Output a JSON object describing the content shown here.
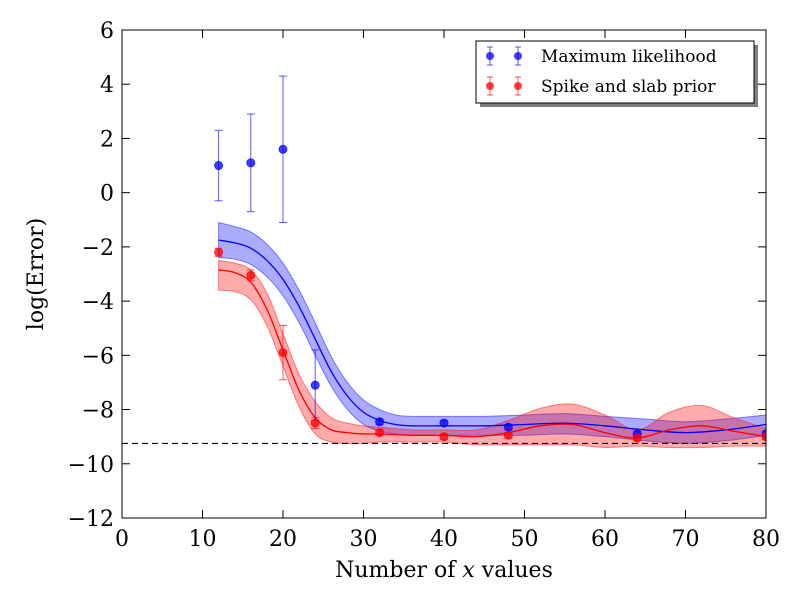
{
  "chart_data": {
    "type": "scatter",
    "xlabel": "Number of x values",
    "xlabel_parts": {
      "prefix": "Number of ",
      "var": "x",
      "suffix": " values"
    },
    "ylabel": "log(Error)",
    "xlim": [
      0,
      80
    ],
    "ylim": [
      -12,
      6
    ],
    "xticks": [
      0,
      10,
      20,
      30,
      40,
      50,
      60,
      70,
      80
    ],
    "yticks": [
      -12,
      -10,
      -8,
      -6,
      -4,
      -2,
      0,
      2,
      4,
      6
    ],
    "ytick_labels": [
      "−12",
      "−10",
      "−8",
      "−6",
      "−4",
      "−2",
      "0",
      "2",
      "4",
      "6"
    ],
    "grid": false,
    "legend_position": "top-right",
    "reference_line": {
      "y": -9.25,
      "style": "dashed",
      "color": "#000000"
    },
    "series": [
      {
        "name": "Maximum likelihood",
        "color": "#0000ff",
        "points": [
          {
            "x": 12,
            "y": 1.0,
            "err": 1.3
          },
          {
            "x": 16,
            "y": 1.1,
            "err": 1.8
          },
          {
            "x": 20,
            "y": 1.6,
            "err": 2.7
          },
          {
            "x": 24,
            "y": -7.1,
            "err": 1.3
          },
          {
            "x": 32,
            "y": -8.45,
            "err": 0.1
          },
          {
            "x": 40,
            "y": -8.5,
            "err": 0.1
          },
          {
            "x": 48,
            "y": -8.65,
            "err": 0.1
          },
          {
            "x": 64,
            "y": -8.9,
            "err": 0.1
          },
          {
            "x": 80,
            "y": -8.9,
            "err": 0.1
          }
        ],
        "fit": {
          "x": [
            12,
            14,
            16,
            18,
            20,
            22,
            24,
            26,
            28,
            30,
            32,
            34,
            36,
            40,
            45,
            50,
            55,
            60,
            65,
            70,
            75,
            80
          ],
          "mean": [
            -1.75,
            -1.85,
            -2.05,
            -2.5,
            -3.2,
            -4.2,
            -5.4,
            -6.6,
            -7.5,
            -8.1,
            -8.4,
            -8.55,
            -8.6,
            -8.6,
            -8.6,
            -8.55,
            -8.5,
            -8.6,
            -8.75,
            -8.85,
            -8.75,
            -8.55
          ],
          "lower": [
            -2.4,
            -2.45,
            -2.65,
            -3.1,
            -3.8,
            -4.8,
            -6.0,
            -7.15,
            -8.0,
            -8.55,
            -8.8,
            -8.9,
            -8.95,
            -8.95,
            -8.95,
            -8.95,
            -8.9,
            -9.0,
            -9.15,
            -9.25,
            -9.15,
            -8.95
          ],
          "upper": [
            -1.1,
            -1.25,
            -1.45,
            -1.9,
            -2.6,
            -3.6,
            -4.8,
            -6.05,
            -7.0,
            -7.65,
            -8.0,
            -8.2,
            -8.25,
            -8.25,
            -8.25,
            -8.2,
            -8.15,
            -8.25,
            -8.35,
            -8.45,
            -8.35,
            -8.2
          ]
        }
      },
      {
        "name": "Spike and slab prior",
        "color": "#ff0000",
        "points": [
          {
            "x": 12,
            "y": -2.2,
            "err": 0.15
          },
          {
            "x": 16,
            "y": -3.05,
            "err": 0.2
          },
          {
            "x": 20,
            "y": -5.9,
            "err": 1.0
          },
          {
            "x": 24,
            "y": -8.5,
            "err": 0.2
          },
          {
            "x": 32,
            "y": -8.85,
            "err": 0.1
          },
          {
            "x": 40,
            "y": -9.0,
            "err": 0.1
          },
          {
            "x": 48,
            "y": -8.95,
            "err": 0.1
          },
          {
            "x": 64,
            "y": -9.05,
            "err": 0.1
          },
          {
            "x": 80,
            "y": -9.0,
            "err": 0.1
          }
        ],
        "fit": {
          "x": [
            12,
            14,
            16,
            18,
            20,
            22,
            24,
            26,
            28,
            30,
            32,
            36,
            40,
            44,
            48,
            52,
            56,
            60,
            64,
            68,
            72,
            76,
            80
          ],
          "mean": [
            -2.85,
            -2.95,
            -3.3,
            -4.3,
            -5.8,
            -7.3,
            -8.3,
            -8.75,
            -8.85,
            -8.9,
            -8.9,
            -8.95,
            -8.95,
            -9.0,
            -8.85,
            -8.6,
            -8.55,
            -8.85,
            -9.05,
            -8.75,
            -8.6,
            -8.8,
            -9.0
          ],
          "lower": [
            -3.6,
            -3.65,
            -3.95,
            -4.9,
            -6.4,
            -7.9,
            -8.9,
            -9.2,
            -9.25,
            -9.25,
            -9.2,
            -9.2,
            -9.2,
            -9.3,
            -9.3,
            -9.3,
            -9.3,
            -9.4,
            -9.35,
            -9.4,
            -9.4,
            -9.35,
            -9.35
          ],
          "upper": [
            -2.5,
            -2.6,
            -2.85,
            -3.7,
            -5.2,
            -6.7,
            -7.7,
            -8.3,
            -8.5,
            -8.6,
            -8.65,
            -8.75,
            -8.75,
            -8.75,
            -8.4,
            -7.95,
            -7.8,
            -8.2,
            -8.75,
            -8.1,
            -7.85,
            -8.3,
            -8.7
          ]
        }
      }
    ]
  }
}
